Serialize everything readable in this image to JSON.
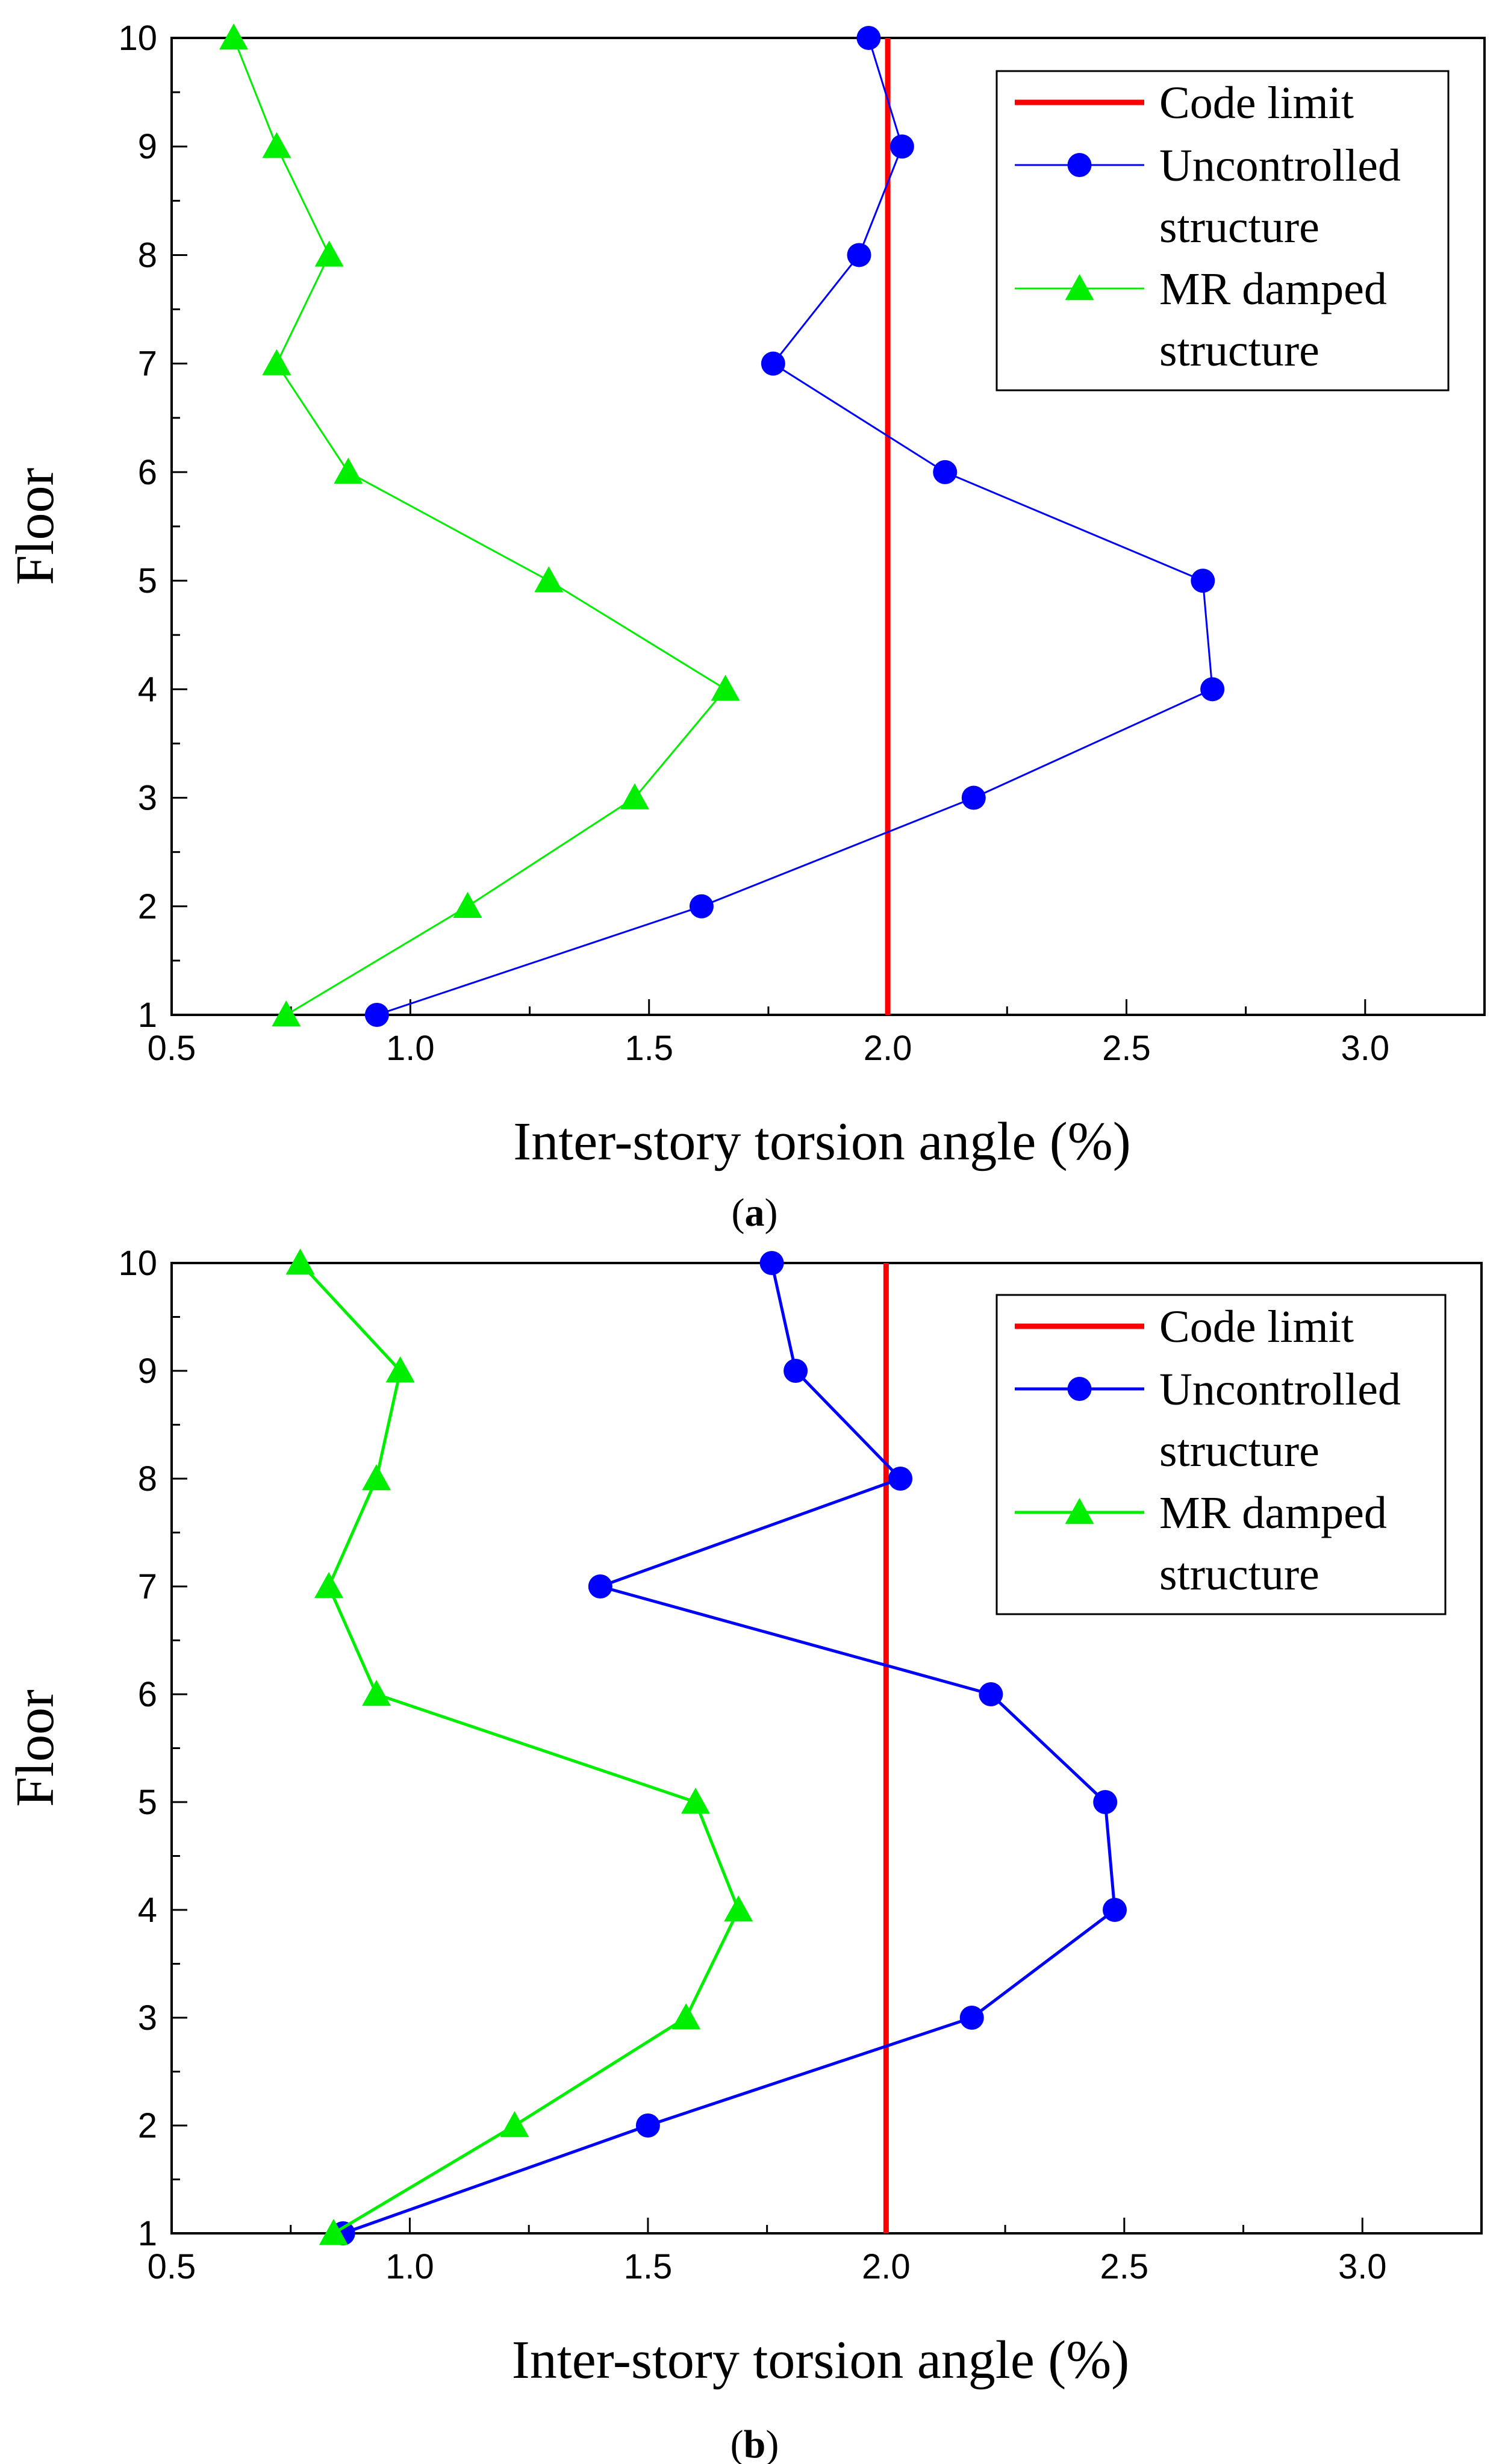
{
  "figure": {
    "colors": {
      "code_limit": "#ff0000",
      "uncontrolled": "#0000ff",
      "mr_damped": "#00ee00",
      "axes": "#000000"
    }
  },
  "chart_data": [
    {
      "type": "line",
      "panel": "a",
      "caption": {
        "open": "(",
        "letter": "a",
        "close": ")"
      },
      "xlabel": "Inter-story torsion angle (%)",
      "ylabel": "Floor",
      "xlim": [
        0.5,
        3.25
      ],
      "ylim": [
        1,
        10
      ],
      "xticks": [
        0.5,
        1.0,
        1.5,
        2.0,
        2.5,
        3.0
      ],
      "xtick_labels": [
        "0.5",
        "1.0",
        "1.5",
        "2.0",
        "2.5",
        "3.0"
      ],
      "yticks": [
        1,
        2,
        3,
        4,
        5,
        6,
        7,
        8,
        9,
        10
      ],
      "ytick_labels": [
        "1",
        "2",
        "3",
        "4",
        "5",
        "6",
        "7",
        "8",
        "9",
        "10"
      ],
      "legend_position": "top-right",
      "legend_lines": [
        [
          "Code limit"
        ],
        [
          "Uncontrolled",
          "structure"
        ],
        [
          "MR damped",
          "structure"
        ]
      ],
      "code_limit": 2.0,
      "series": [
        {
          "name": "Uncontrolled structure",
          "marker": "circle",
          "color": "#0000ff",
          "x": [
            0.93,
            1.61,
            2.18,
            2.68,
            2.66,
            2.12,
            1.76,
            1.94,
            2.03,
            1.96
          ],
          "y": [
            1,
            2,
            3,
            4,
            5,
            6,
            7,
            8,
            9,
            10
          ]
        },
        {
          "name": "MR damped structure",
          "marker": "triangle",
          "color": "#00ee00",
          "x": [
            0.74,
            1.12,
            1.47,
            1.66,
            1.29,
            0.87,
            0.72,
            0.83,
            0.72,
            0.63
          ],
          "y": [
            1,
            2,
            3,
            4,
            5,
            6,
            7,
            8,
            9,
            10
          ]
        }
      ]
    },
    {
      "type": "line",
      "panel": "b",
      "caption": {
        "open": "(",
        "letter": "b",
        "close": ")"
      },
      "xlabel": "Inter-story torsion angle (%)",
      "ylabel": "Floor",
      "xlim": [
        0.5,
        3.25
      ],
      "ylim": [
        1,
        10
      ],
      "xticks": [
        0.5,
        1.0,
        1.5,
        2.0,
        2.5,
        3.0
      ],
      "xtick_labels": [
        "0.5",
        "1.0",
        "1.5",
        "2.0",
        "2.5",
        "3.0"
      ],
      "yticks": [
        1,
        2,
        3,
        4,
        5,
        6,
        7,
        8,
        9,
        10
      ],
      "ytick_labels": [
        "1",
        "2",
        "3",
        "4",
        "5",
        "6",
        "7",
        "8",
        "9",
        "10"
      ],
      "legend_position": "top-right",
      "legend_lines": [
        [
          "Code limit"
        ],
        [
          "Uncontrolled",
          "structure"
        ],
        [
          "MR damped",
          "structure"
        ]
      ],
      "code_limit": 2.0,
      "series": [
        {
          "name": "Uncontrolled structure",
          "marker": "circle",
          "color": "#0000ff",
          "x": [
            0.86,
            1.5,
            2.18,
            2.48,
            2.46,
            2.22,
            1.4,
            2.03,
            1.81,
            1.76
          ],
          "y": [
            1,
            2,
            3,
            4,
            5,
            6,
            7,
            8,
            9,
            10
          ]
        },
        {
          "name": "MR damped structure",
          "marker": "triangle",
          "color": "#00ee00",
          "x": [
            0.84,
            1.22,
            1.58,
            1.69,
            1.6,
            0.93,
            0.83,
            0.93,
            0.98,
            0.77
          ],
          "y": [
            1,
            2,
            3,
            4,
            5,
            6,
            7,
            8,
            9,
            10
          ]
        }
      ]
    }
  ]
}
